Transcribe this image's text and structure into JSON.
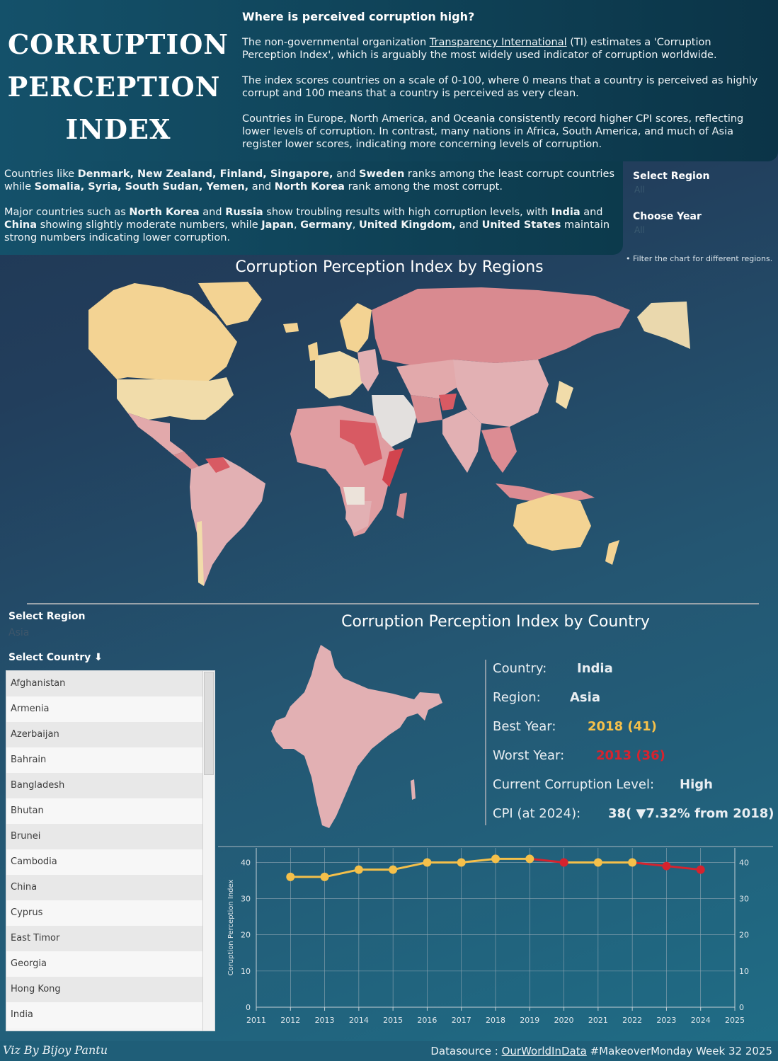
{
  "header": {
    "title_lines": [
      "CORRUPTION",
      "PERCEPTION",
      "INDEX"
    ],
    "intro_heading": "Where is perceived corruption high?",
    "p1_before": "The non-governmental organization ",
    "p1_link": "Transparency International",
    "p1_after": " (TI) estimates a 'Corruption Perception Index', which is arguably the most widely used indicator of corruption worldwide.",
    "p2": "The index scores countries on a scale of 0-100, where 0 means that a country is perceived as highly corrupt and 100 means that a country is perceived as very clean.",
    "p3": "Countries in Europe, North America, and Oceania consistently record higher CPI scores, reflecting lower levels of corruption. In contrast, many nations in Africa, South America, and much of Asia register lower scores, indicating more concerning levels of corruption.",
    "p4": [
      {
        "t": "Countries like ",
        "b": false
      },
      {
        "t": "Denmark, New Zealand, Finland, Singapore,",
        "b": true
      },
      {
        "t": " and ",
        "b": false
      },
      {
        "t": "Sweden",
        "b": true
      },
      {
        "t": " ranks among the least corrupt countries while ",
        "b": false
      },
      {
        "t": "Somalia, Syria, South Sudan, Yemen,",
        "b": true
      },
      {
        "t": " and ",
        "b": false
      },
      {
        "t": "North Korea",
        "b": true
      },
      {
        "t": " rank among the most corrupt.",
        "b": false
      }
    ],
    "p5": [
      {
        "t": "Major countries such as ",
        "b": false
      },
      {
        "t": "North Korea",
        "b": true
      },
      {
        "t": " and ",
        "b": false
      },
      {
        "t": "Russia",
        "b": true
      },
      {
        "t": " show troubling results with high corruption levels, with ",
        "b": false
      },
      {
        "t": "India",
        "b": true
      },
      {
        "t": " and ",
        "b": false
      },
      {
        "t": "China",
        "b": true
      },
      {
        "t": " showing slightly moderate numbers, while ",
        "b": false
      },
      {
        "t": "Japan",
        "b": true
      },
      {
        "t": ", ",
        "b": false
      },
      {
        "t": "Germany",
        "b": true
      },
      {
        "t": ", ",
        "b": false
      },
      {
        "t": "United Kingdom,",
        "b": true
      },
      {
        "t": " and ",
        "b": false
      },
      {
        "t": "United States",
        "b": true
      },
      {
        "t": " maintain strong numbers indicating lower corruption.",
        "b": false
      }
    ]
  },
  "filters": {
    "region_label": "Select Region",
    "region_value": "All",
    "year_label": "Choose Year",
    "year_value": "All",
    "note": "• Filter the chart for different regions."
  },
  "map_section": {
    "title": "Corruption Perception Index by Regions"
  },
  "country_section": {
    "title": "Corruption Perception Index by Country",
    "region_label": "Select Region",
    "region_value": "Asia",
    "country_label": "Select Country ⬇",
    "countries": [
      "Afghanistan",
      "Armenia",
      "Azerbaijan",
      "Bahrain",
      "Bangladesh",
      "Bhutan",
      "Brunei",
      "Cambodia",
      "China",
      "Cyprus",
      "East Timor",
      "Georgia",
      "Hong Kong",
      "India"
    ]
  },
  "info": {
    "country_label": "Country:",
    "country": "India",
    "region_label": "Region:",
    "region": "Asia",
    "best_label": "Best Year:",
    "best": "2018 (41)",
    "worst_label": "Worst Year:",
    "worst": "2013 (36)",
    "level_label": "Current Corruption Level:",
    "level": "High",
    "cpi_label": "CPI (at 2024):",
    "cpi": "38( ▼7.32% from 2018)",
    "colors": {
      "best": "#f5c04a",
      "worst": "#d6232e"
    }
  },
  "chart_data": {
    "type": "line",
    "title": "",
    "xlabel": "",
    "ylabel": "Coruption Perception Index",
    "x": [
      2012,
      2013,
      2014,
      2015,
      2016,
      2017,
      2018,
      2019,
      2020,
      2021,
      2022,
      2023,
      2024
    ],
    "values": [
      36,
      36,
      38,
      38,
      40,
      40,
      41,
      41,
      40,
      40,
      40,
      39,
      38
    ],
    "point_colors": [
      "#f5c04a",
      "#f5c04a",
      "#f5c04a",
      "#f5c04a",
      "#f5c04a",
      "#f5c04a",
      "#f5c04a",
      "#f5c04a",
      "#d6232e",
      "#f5c04a",
      "#f5c04a",
      "#d6232e",
      "#d6232e"
    ],
    "xlim": [
      2011,
      2025
    ],
    "ylim": [
      0,
      44
    ],
    "x_ticks": [
      "2011",
      "2012",
      "2013",
      "2014",
      "2015",
      "2016",
      "2017",
      "2018",
      "2019",
      "2020",
      "2021",
      "2022",
      "2023",
      "2024",
      "2025"
    ],
    "y_ticks": [
      0,
      10,
      20,
      30,
      40
    ]
  },
  "footer": {
    "credit": "Viz By  Bijoy Pantu",
    "source_prefix": "Datasource : ",
    "source_link": "OurWorldInData",
    "source_suffix": " #MakeoverMonday Week 32 2025"
  }
}
